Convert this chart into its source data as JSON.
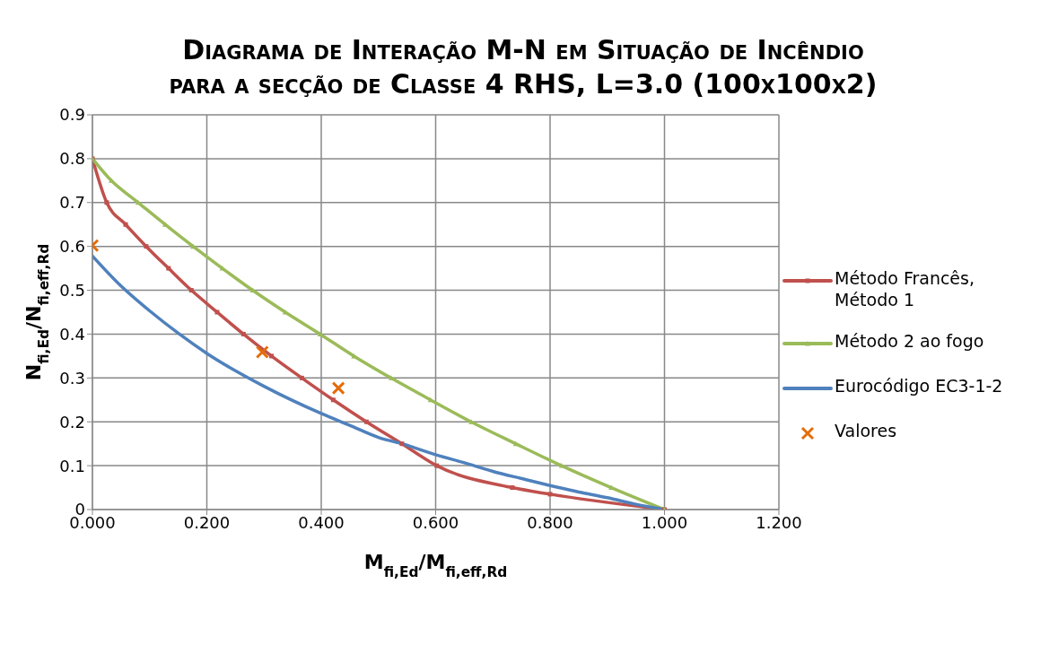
{
  "chart_data": {
    "type": "line",
    "title": "Diagrama de Interação M-N em Situação de Incêndio\npara a secção de Classe 4 RHS, L=3.0 (100x100x2)",
    "xlabel": "M$_{fi,Ed}$/M$_{fi,eff,Rd}$",
    "ylabel": "N$_{fi,Ed}$/N$_{fi,eff,Rd}$",
    "xlim": [
      0,
      1.2
    ],
    "xticks": [
      {
        "value": 0,
        "label": "0.000"
      },
      {
        "value": 0.2,
        "label": "0.200"
      },
      {
        "value": 0.4,
        "label": "0.400"
      },
      {
        "value": 0.6,
        "label": "0.600"
      },
      {
        "value": 0.8,
        "label": "0.800"
      },
      {
        "value": 1,
        "label": "1.000"
      },
      {
        "value": 1.2,
        "label": "1.200"
      }
    ],
    "ylim": [
      0,
      0.9
    ],
    "yticks": [
      0,
      0.1,
      0.2,
      0.3,
      0.4,
      0.5,
      0.6,
      0.7,
      0.8,
      0.9
    ],
    "grid": true,
    "legend": "right",
    "series": [
      {
        "name": "Método Francês, Método 1",
        "color": "#c0504d",
        "marker": "square",
        "x": [
          0,
          0.025,
          0.058,
          0.094,
          0.133,
          0.173,
          0.218,
          0.264,
          0.313,
          0.366,
          0.421,
          0.479,
          0.541,
          0.602,
          0.734,
          0.8,
          1.0
        ],
        "values": [
          0.8,
          0.7,
          0.65,
          0.6,
          0.55,
          0.5,
          0.45,
          0.4,
          0.35,
          0.3,
          0.25,
          0.2,
          0.15,
          0.1,
          0.05,
          0.035,
          0
        ]
      },
      {
        "name": "Método 2 ao fogo",
        "color": "#9bbb59",
        "marker": "triangle",
        "x": [
          0,
          0.033,
          0.08,
          0.127,
          0.176,
          0.227,
          0.28,
          0.337,
          0.398,
          0.457,
          0.522,
          0.591,
          0.662,
          0.74,
          0.82,
          0.907,
          1.0
        ],
        "values": [
          0.8,
          0.75,
          0.7,
          0.65,
          0.6,
          0.55,
          0.5,
          0.45,
          0.4,
          0.35,
          0.3,
          0.25,
          0.2,
          0.15,
          0.1,
          0.05,
          0
        ]
      },
      {
        "name": "Eurocódigo EC3-1-2",
        "color": "#4f81bd",
        "marker": "none",
        "x": [
          0,
          0.045,
          0.101,
          0.151,
          0.2,
          0.3,
          0.4,
          0.448,
          0.501,
          0.544,
          0.6,
          0.649,
          0.7,
          0.749,
          0.85,
          0.9,
          0.95,
          1.0
        ],
        "values": [
          0.578,
          0.516,
          0.452,
          0.401,
          0.356,
          0.281,
          0.219,
          0.193,
          0.164,
          0.149,
          0.125,
          0.107,
          0.087,
          0.071,
          0.04,
          0.027,
          0.012,
          0
        ]
      },
      {
        "name": "Valores",
        "type": "scatter",
        "color": "#e46c0a",
        "marker": "cross",
        "x": [
          0,
          0.297,
          0.43
        ],
        "values": [
          0.602,
          0.359,
          0.277
        ]
      }
    ]
  }
}
